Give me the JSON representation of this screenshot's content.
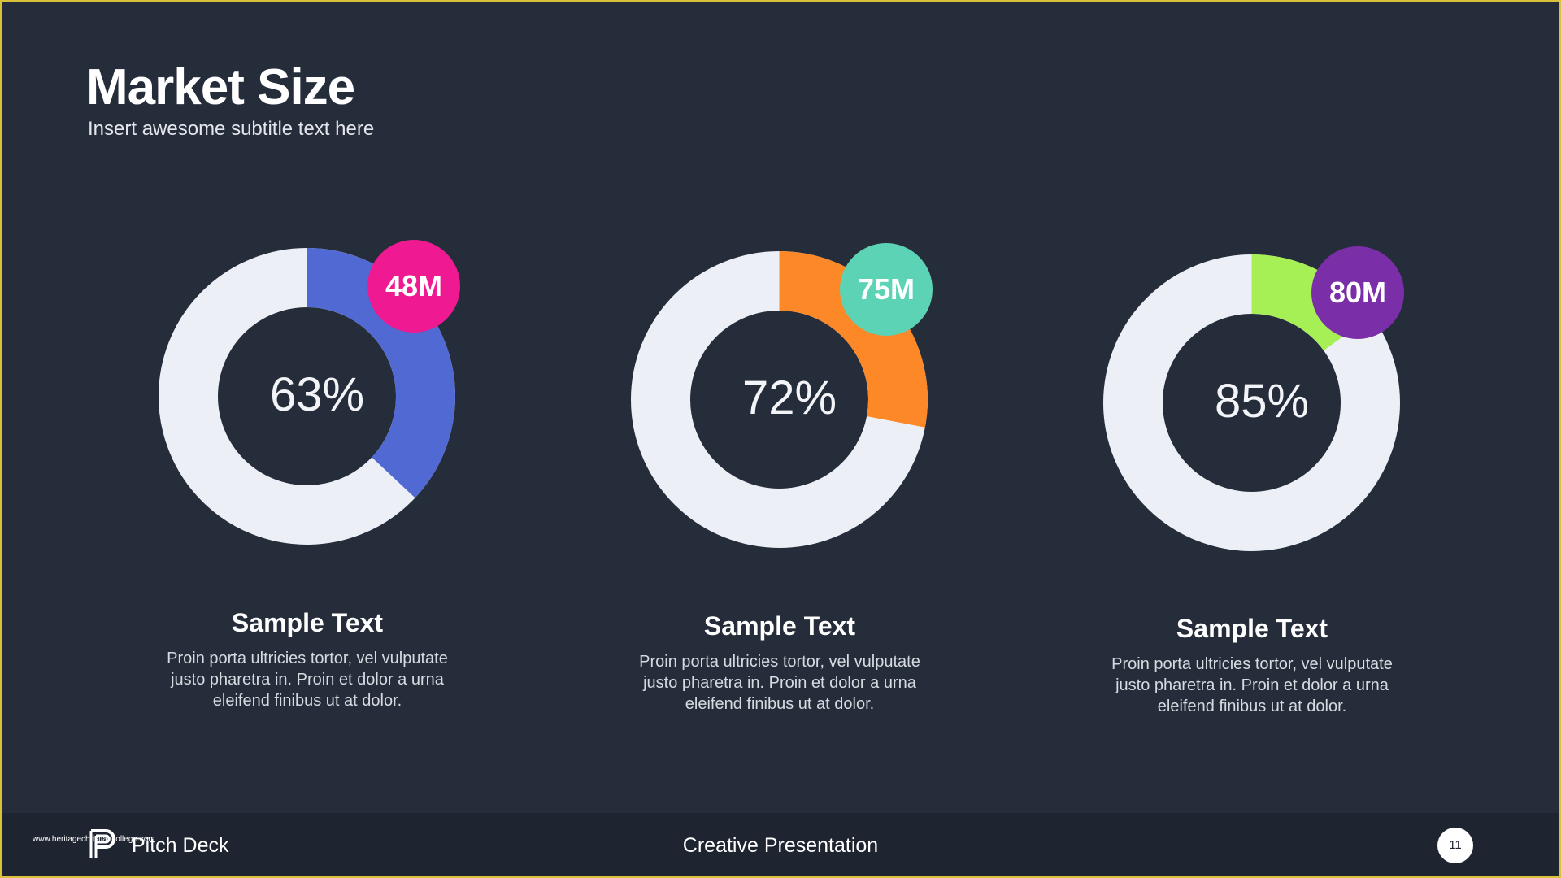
{
  "header": {
    "title": "Market Size",
    "subtitle": "Insert awesome subtitle text here"
  },
  "chart_data": [
    {
      "type": "pie",
      "value_percent": 63,
      "center_label": "63%",
      "badge_label": "48M",
      "colors": {
        "segment": "#5169d3",
        "track": "#eceff5",
        "badge": "#ef1a92"
      }
    },
    {
      "type": "pie",
      "value_percent": 72,
      "center_label": "72%",
      "badge_label": "75M",
      "colors": {
        "segment": "#fc8828",
        "track": "#eceff5",
        "badge": "#5dd3b5"
      }
    },
    {
      "type": "pie",
      "value_percent": 85,
      "center_label": "85%",
      "badge_label": "80M",
      "colors": {
        "segment": "#a6f055",
        "track": "#eceff5",
        "badge": "#7a2fa8"
      }
    }
  ],
  "cards": [
    {
      "heading": "Sample Text",
      "line1": "Proin porta ultricies tortor, vel vulputate",
      "line2": "justo pharetra in. Proin et dolor a urna",
      "line3": "eleifend finibus ut at dolor."
    },
    {
      "heading": "Sample Text",
      "line1": "Proin porta ultricies tortor, vel vulputate",
      "line2": "justo pharetra in. Proin et dolor a urna",
      "line3": "eleifend finibus ut at dolor."
    },
    {
      "heading": "Sample Text",
      "line1": "Proin porta ultricies tortor, vel vulputate",
      "line2": "justo pharetra in. Proin et dolor a urna",
      "line3": "eleifend finibus ut at dolor."
    }
  ],
  "footer": {
    "url": "www.heritagechristiancollege.com",
    "brand": "Pitch Deck",
    "center": "Creative Presentation",
    "page_number": "11",
    "logo_icon": "p-logo-icon"
  },
  "theme": {
    "background": "#262d3a",
    "footer_background": "#1e2430",
    "frame": "#d9c23a"
  }
}
